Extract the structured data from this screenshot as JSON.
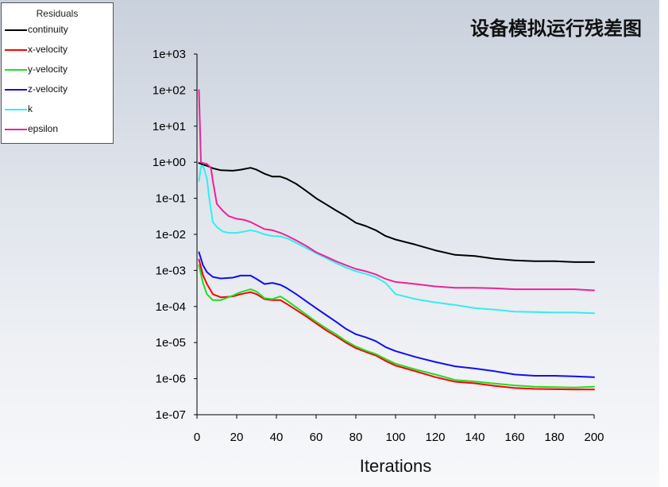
{
  "chart_data": {
    "type": "line",
    "title": "设备模拟运行残差图",
    "xlabel": "Iterations",
    "ylabel": "",
    "xlim": [
      0,
      200
    ],
    "ylim": [
      1e-07,
      1000
    ],
    "yscale": "log",
    "grid": false,
    "legend_title": "Residuals",
    "legend_position": "top-left",
    "x_ticks": [
      0,
      20,
      40,
      60,
      80,
      100,
      120,
      140,
      160,
      180,
      200
    ],
    "x_tick_labels": [
      "0",
      "20",
      "40",
      "60",
      "80",
      "100",
      "120",
      "140",
      "160",
      "180",
      "200"
    ],
    "y_ticks": [
      1e-07,
      1e-06,
      1e-05,
      0.0001,
      0.001,
      0.01,
      0.1,
      1,
      10,
      100,
      1000
    ],
    "y_tick_labels": [
      "1e-07",
      "1e-06",
      "1e-05",
      "1e-04",
      "1e-03",
      "1e-02",
      "1e-01",
      "1e+00",
      "1e+01",
      "1e+02",
      "1e+03"
    ],
    "series": [
      {
        "name": "continuity",
        "color": "#000000",
        "x": [
          1,
          3,
          5,
          8,
          12,
          18,
          22,
          27,
          30,
          34,
          38,
          42,
          45,
          50,
          55,
          60,
          65,
          70,
          75,
          80,
          85,
          90,
          95,
          100,
          110,
          120,
          130,
          140,
          150,
          160,
          170,
          180,
          190,
          200
        ],
        "y": [
          0.95,
          0.85,
          0.8,
          0.68,
          0.6,
          0.58,
          0.62,
          0.7,
          0.62,
          0.48,
          0.4,
          0.4,
          0.35,
          0.25,
          0.16,
          0.1,
          0.068,
          0.046,
          0.032,
          0.021,
          0.017,
          0.013,
          0.009,
          0.0072,
          0.0052,
          0.0036,
          0.0027,
          0.0025,
          0.0021,
          0.0019,
          0.0018,
          0.0018,
          0.0017,
          0.0017
        ]
      },
      {
        "name": "x-velocity",
        "color": "#ff0000",
        "x": [
          1,
          3,
          5,
          8,
          12,
          18,
          22,
          27,
          30,
          34,
          38,
          42,
          45,
          50,
          55,
          60,
          65,
          70,
          75,
          80,
          85,
          90,
          95,
          100,
          110,
          120,
          130,
          140,
          150,
          160,
          170,
          180,
          190,
          200
        ],
        "y": [
          0.002,
          0.00075,
          0.00042,
          0.00022,
          0.00018,
          0.00019,
          0.00022,
          0.00025,
          0.00022,
          0.00016,
          0.00015,
          0.00015,
          0.00012,
          8e-05,
          5.3e-05,
          3.4e-05,
          2.2e-05,
          1.5e-05,
          1e-05,
          7e-06,
          5.5e-06,
          4.4e-06,
          3.1e-06,
          2.3e-06,
          1.6e-06,
          1.1e-06,
          8.2e-07,
          7.4e-07,
          6.3e-07,
          5.5e-07,
          5.2e-07,
          5.1e-07,
          5e-07,
          5e-07
        ]
      },
      {
        "name": "y-velocity",
        "color": "#22dd22",
        "x": [
          1,
          3,
          5,
          8,
          12,
          18,
          22,
          27,
          30,
          34,
          38,
          42,
          45,
          50,
          55,
          60,
          65,
          70,
          75,
          80,
          85,
          90,
          95,
          100,
          110,
          120,
          130,
          140,
          150,
          160,
          170,
          180,
          190,
          200
        ],
        "y": [
          0.0014,
          0.00045,
          0.00022,
          0.00015,
          0.00015,
          0.0002,
          0.00025,
          0.0003,
          0.00026,
          0.00017,
          0.00016,
          0.00019,
          0.00015,
          9.5e-05,
          6e-05,
          3.8e-05,
          2.5e-05,
          1.7e-05,
          1.1e-05,
          7.8e-06,
          6e-06,
          4.8e-06,
          3.5e-06,
          2.6e-06,
          1.8e-06,
          1.3e-06,
          9.2e-07,
          8.3e-07,
          7.3e-07,
          6.5e-07,
          6e-07,
          5.8e-07,
          5.7e-07,
          6e-07
        ]
      },
      {
        "name": "z-velocity",
        "color": "#1010ee",
        "x": [
          1,
          3,
          5,
          8,
          12,
          18,
          22,
          27,
          30,
          34,
          38,
          42,
          45,
          50,
          55,
          60,
          65,
          70,
          75,
          80,
          85,
          90,
          95,
          100,
          110,
          120,
          130,
          140,
          150,
          160,
          170,
          180,
          190,
          200
        ],
        "y": [
          0.0032,
          0.0014,
          0.0009,
          0.00066,
          0.0006,
          0.00063,
          0.00072,
          0.00072,
          0.00058,
          0.00042,
          0.00045,
          0.0004,
          0.00033,
          0.00022,
          0.00014,
          9e-05,
          5.8e-05,
          3.8e-05,
          2.4e-05,
          1.7e-05,
          1.4e-05,
          1.1e-05,
          7.5e-06,
          5.8e-06,
          4e-06,
          2.9e-06,
          2.2e-06,
          1.9e-06,
          1.6e-06,
          1.3e-06,
          1.2e-06,
          1.2e-06,
          1.15e-06,
          1.1e-06
        ]
      },
      {
        "name": "k",
        "color": "#33eeee",
        "x": [
          1,
          2,
          3,
          4,
          5,
          6,
          7,
          8,
          10,
          13,
          16,
          20,
          24,
          27,
          30,
          34,
          38,
          42,
          46,
          50,
          55,
          60,
          65,
          70,
          75,
          80,
          85,
          90,
          95,
          100,
          110,
          120,
          130,
          140,
          150,
          160,
          170,
          180,
          190,
          200
        ],
        "y": [
          0.3,
          0.75,
          0.8,
          0.55,
          0.35,
          0.12,
          0.05,
          0.022,
          0.016,
          0.012,
          0.011,
          0.011,
          0.012,
          0.013,
          0.012,
          0.01,
          0.009,
          0.0088,
          0.0075,
          0.0058,
          0.0042,
          0.003,
          0.0022,
          0.0016,
          0.0012,
          0.00095,
          0.0008,
          0.00065,
          0.00045,
          0.00022,
          0.00016,
          0.00013,
          0.00011,
          9e-05,
          8.2e-05,
          7.2e-05,
          7e-05,
          6.8e-05,
          6.8e-05,
          6.5e-05
        ]
      },
      {
        "name": "epsilon",
        "color": "#ee2299",
        "x": [
          1,
          2,
          3,
          5,
          7,
          8,
          10,
          13,
          16,
          20,
          24,
          27,
          30,
          34,
          38,
          42,
          46,
          50,
          55,
          60,
          65,
          70,
          75,
          80,
          85,
          90,
          95,
          100,
          110,
          120,
          130,
          140,
          150,
          160,
          170,
          180,
          190,
          200
        ],
        "y": [
          100,
          1.0,
          0.95,
          0.9,
          0.7,
          0.3,
          0.07,
          0.045,
          0.032,
          0.027,
          0.025,
          0.022,
          0.018,
          0.014,
          0.013,
          0.011,
          0.0088,
          0.0068,
          0.0048,
          0.0032,
          0.0024,
          0.0018,
          0.0014,
          0.0011,
          0.00095,
          0.00078,
          0.00058,
          0.00048,
          0.00042,
          0.00036,
          0.00033,
          0.00033,
          0.00032,
          0.0003,
          0.0003,
          0.0003,
          0.0003,
          0.00028
        ]
      }
    ]
  }
}
